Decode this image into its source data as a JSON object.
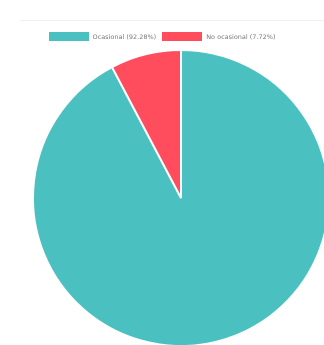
{
  "chart_data": {
    "type": "pie",
    "slices": [
      {
        "label": "Ocasional (92.28%)",
        "value": 92.28,
        "color": "#4bc0c0"
      },
      {
        "label": "No ocasional (7.72%)",
        "value": 7.72,
        "color": "#ff4d5e"
      }
    ],
    "legend_position": "top"
  }
}
